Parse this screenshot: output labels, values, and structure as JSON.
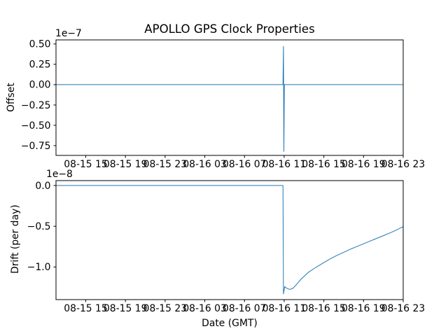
{
  "figure": {
    "title": "APOLLO GPS Clock Properties",
    "xlabel": "Date (GMT)",
    "background": "#ffffff",
    "line_color": "#1f77b4",
    "spine_color": "#000000"
  },
  "chart_data": [
    {
      "type": "line",
      "name": "offset",
      "ylabel": "Offset",
      "offset_text": "1e−7",
      "legend": "none",
      "grid": false,
      "ylim": [
        -0.87,
        0.55
      ],
      "ytick_values": [
        0.5,
        0.25,
        0.0,
        -0.25,
        -0.5,
        -0.75
      ],
      "ytick_labels": [
        "0.50",
        "0.25",
        "0.00",
        "−0.25",
        "−0.50",
        "−0.75"
      ],
      "xlim": [
        12.0,
        47.0
      ],
      "xtick_values": [
        15,
        19,
        23,
        27,
        31,
        35,
        39,
        43,
        47
      ],
      "xtick_labels": [
        "08-15 15",
        "08-15 19",
        "08-15 23",
        "08-16 03",
        "08-16 07",
        "08-16 11",
        "08-16 15",
        "08-16 19",
        "08-16 23"
      ],
      "x": [
        12.0,
        34.88,
        34.93,
        34.97,
        35.02,
        47.0
      ],
      "y": [
        0.0,
        0.0,
        0.47,
        -0.82,
        0.0,
        0.0
      ]
    },
    {
      "type": "line",
      "name": "drift",
      "ylabel": "Drift (per day)",
      "offset_text": "1e−8",
      "legend": "none",
      "grid": false,
      "ylim": [
        -1.4,
        0.06
      ],
      "ytick_values": [
        0.0,
        -0.5,
        -1.0
      ],
      "ytick_labels": [
        "0.0",
        "−0.5",
        "−1.0"
      ],
      "xlim": [
        12.0,
        47.0
      ],
      "xtick_values": [
        15,
        19,
        23,
        27,
        31,
        35,
        39,
        43,
        47
      ],
      "xtick_labels": [
        "08-15 15",
        "08-15 19",
        "08-15 23",
        "08-16 03",
        "08-16 07",
        "08-16 11",
        "08-16 15",
        "08-16 19",
        "08-16 23"
      ],
      "x": [
        12.0,
        34.88,
        34.93,
        35.05,
        35.25,
        35.55,
        35.85,
        36.2,
        36.7,
        37.4,
        38.0,
        38.8,
        39.5,
        40.2,
        41.0,
        41.8,
        42.6,
        43.4,
        44.2,
        45.0,
        45.8,
        46.5,
        47.0
      ],
      "y": [
        0.0,
        0.0,
        -1.33,
        -1.24,
        -1.26,
        -1.275,
        -1.265,
        -1.22,
        -1.15,
        -1.07,
        -1.02,
        -0.96,
        -0.91,
        -0.865,
        -0.82,
        -0.775,
        -0.735,
        -0.695,
        -0.655,
        -0.615,
        -0.575,
        -0.535,
        -0.505
      ]
    }
  ]
}
